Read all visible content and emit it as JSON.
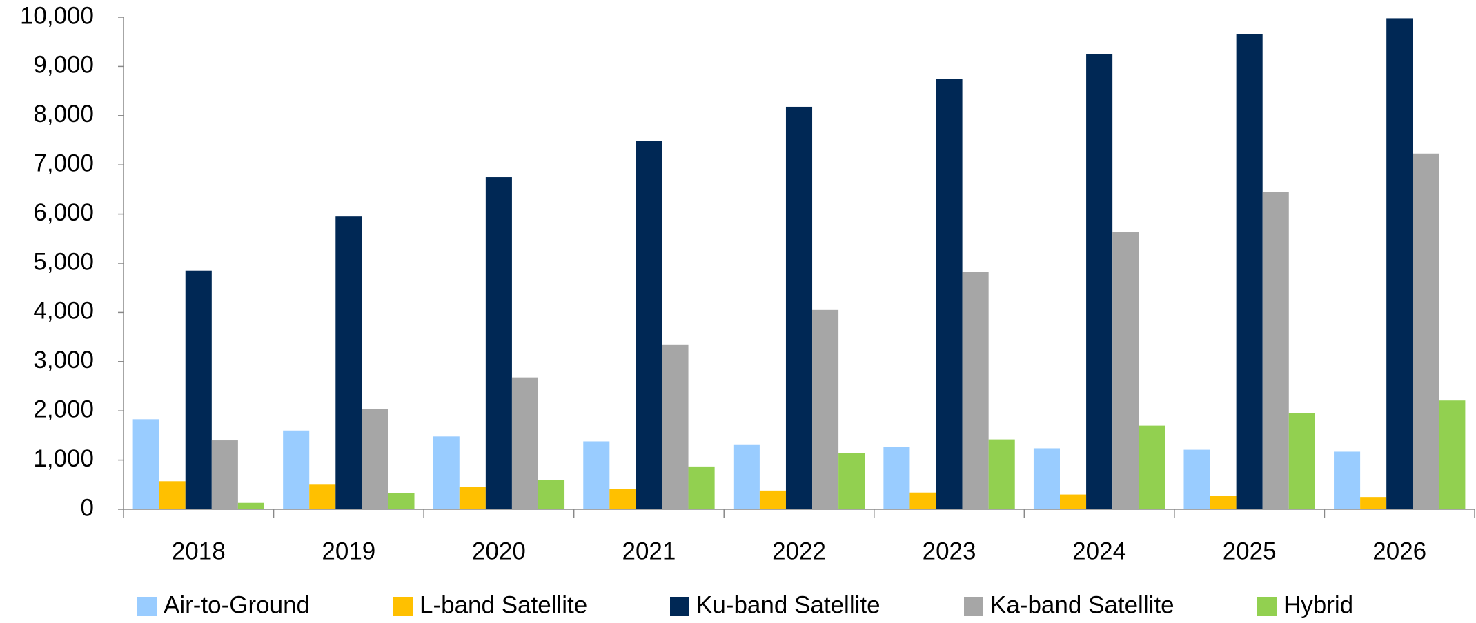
{
  "chart_data": {
    "type": "bar",
    "categories": [
      "2018",
      "2019",
      "2020",
      "2021",
      "2022",
      "2023",
      "2024",
      "2025",
      "2026"
    ],
    "series": [
      {
        "name": "Air-to-Ground",
        "color": "#99ccff",
        "values": [
          1830,
          1600,
          1480,
          1380,
          1320,
          1270,
          1240,
          1210,
          1170
        ]
      },
      {
        "name": "L-band Satellite",
        "color": "#ffc000",
        "values": [
          570,
          500,
          450,
          410,
          380,
          340,
          300,
          270,
          250
        ]
      },
      {
        "name": "Ku-band Satellite",
        "color": "#002855",
        "values": [
          4850,
          5950,
          6750,
          7480,
          8180,
          8750,
          9250,
          9650,
          9980
        ]
      },
      {
        "name": "Ka-band Satellite",
        "color": "#a6a6a6",
        "values": [
          1400,
          2040,
          2680,
          3350,
          4050,
          4830,
          5630,
          6450,
          7230
        ]
      },
      {
        "name": "Hybrid",
        "color": "#92d050",
        "values": [
          130,
          330,
          600,
          870,
          1140,
          1420,
          1700,
          1960,
          2210
        ]
      }
    ],
    "ylim": [
      0,
      10000
    ],
    "yticks": [
      0,
      {
        "value": 1000,
        "label": "1,000"
      },
      {
        "value": 2000,
        "label": "2,000"
      },
      {
        "value": 3000,
        "label": "3,000"
      },
      {
        "value": 4000,
        "label": "4,000"
      },
      {
        "value": 5000,
        "label": "5,000"
      },
      {
        "value": 6000,
        "label": "6,000"
      },
      {
        "value": 7000,
        "label": "7,000"
      },
      {
        "value": 8000,
        "label": "8,000"
      },
      {
        "value": 9000,
        "label": "9,000"
      },
      {
        "value": 10000,
        "label": "10,000"
      }
    ],
    "grid": false,
    "legend": "bottom"
  }
}
